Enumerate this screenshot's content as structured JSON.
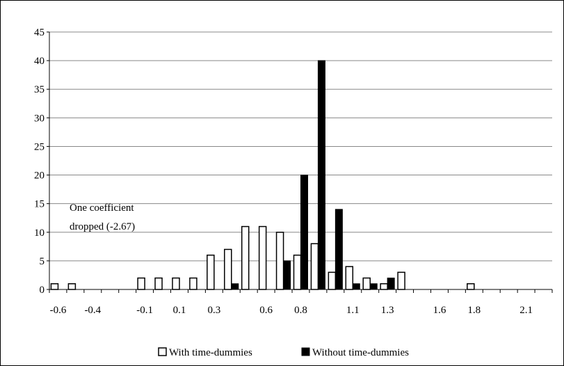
{
  "chart_data": {
    "type": "bar",
    "title": "",
    "xlabel": "",
    "ylabel": "",
    "ylim": [
      0,
      45
    ],
    "yticks": [
      "0",
      "5",
      "10",
      "15",
      "20",
      "25",
      "30",
      "35",
      "40",
      "45"
    ],
    "grid": true,
    "legend_position": "bottom",
    "categories": [
      "-0.6",
      "-0.5",
      "-0.4",
      "-0.3",
      "-0.2",
      "-0.1",
      "0",
      "0.1",
      "0.2",
      "0.3",
      "0.4",
      "0.5",
      "0.6",
      "0.7",
      "0.8",
      "0.9",
      "1",
      "1.1",
      "1.2",
      "1.3",
      "1.4",
      "1.5",
      "1.6",
      "1.7",
      "1.8",
      "1.9",
      "2",
      "2.1",
      "2.2"
    ],
    "tick_labels": [
      "-0.6",
      "-0.4",
      "-0.1",
      "0.1",
      "0.3",
      "0.6",
      "0.8",
      "1.1",
      "1.3",
      "1.6",
      "1.8",
      "2.1"
    ],
    "tick_label_category_index": [
      0,
      2,
      5,
      7,
      9,
      12,
      14,
      17,
      19,
      22,
      24,
      27
    ],
    "series": [
      {
        "name": "With time-dummies",
        "color": "#ffffff",
        "stroke": "#000000",
        "values": [
          1,
          1,
          0,
          0,
          0,
          2,
          2,
          2,
          2,
          6,
          7,
          11,
          11,
          10,
          6,
          8,
          3,
          4,
          2,
          1,
          3,
          0,
          0,
          0,
          1,
          0,
          0,
          0,
          0
        ]
      },
      {
        "name": "Without time-dummies",
        "color": "#000000",
        "stroke": "#000000",
        "values": [
          0,
          0,
          0,
          0,
          0,
          0,
          0,
          0,
          0,
          0,
          1,
          0,
          0,
          5,
          20,
          40,
          14,
          1,
          1,
          2,
          0,
          0,
          0,
          0,
          0,
          0,
          0,
          0,
          0
        ]
      }
    ],
    "annotation": {
      "lines": [
        "One coefficient",
        "dropped (-2.67)"
      ]
    }
  }
}
